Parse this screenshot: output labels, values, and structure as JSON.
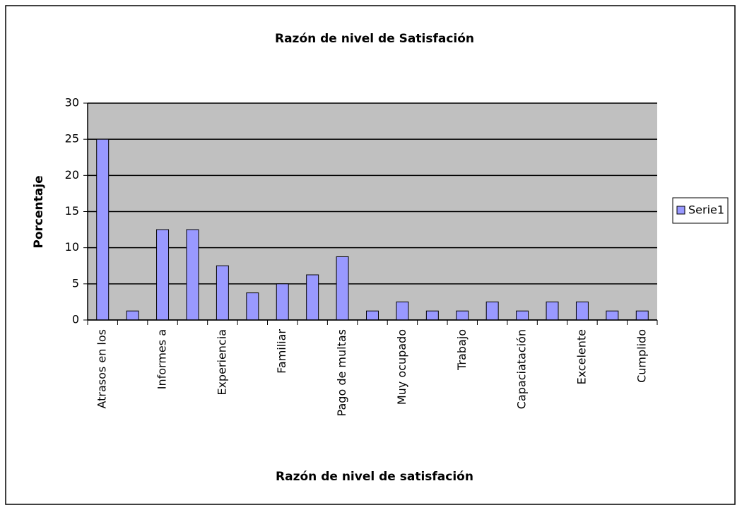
{
  "chart_data": {
    "type": "bar",
    "title": "Razón de nivel de Satisfación",
    "x_label": "Razón de nivel de satisfación",
    "y_label": "Porcentaje",
    "categories": [
      "Atrasos en los",
      null,
      "Informes a",
      null,
      "Experiencia",
      null,
      "Familiar",
      null,
      "Pago de multas",
      null,
      "Muy ocupado",
      null,
      "Trabajo",
      null,
      "Capaciatación",
      null,
      "Excelente",
      null,
      "Cumplido"
    ],
    "series": [
      {
        "name": "Serie1",
        "color": "#9999ff",
        "values": [
          25,
          1.25,
          12.5,
          12.5,
          7.5,
          3.75,
          5,
          6.25,
          8.75,
          1.25,
          2.5,
          1.25,
          1.25,
          2.5,
          1.25,
          2.5,
          2.5,
          1.25,
          1.25
        ]
      }
    ],
    "ylim": [
      0,
      30
    ],
    "yticks": [
      0,
      5,
      10,
      15,
      20,
      25,
      30
    ],
    "grid": true,
    "legend": "right"
  }
}
